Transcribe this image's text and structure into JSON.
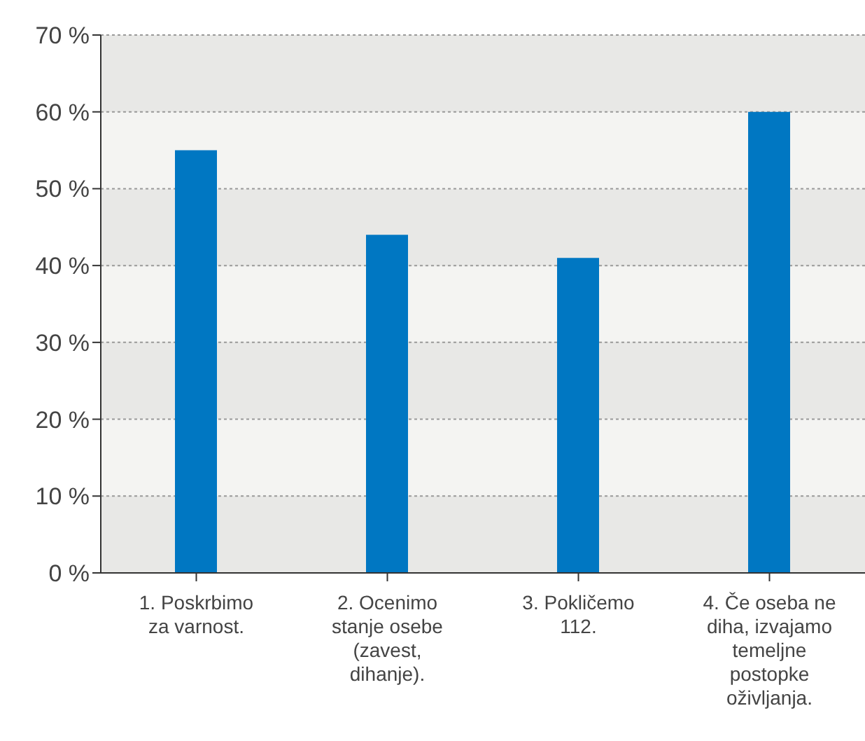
{
  "chart_data": {
    "type": "bar",
    "categories": [
      "1. Poskrbimo za varnost.",
      "2. Ocenimo stanje osebe (zavest, dihanje).",
      "3. Pokličemo 112.",
      "4. Če oseba ne diha, izvajamo temeljne postopke oživljanja."
    ],
    "values": [
      55,
      44,
      41,
      60
    ],
    "color": "#0077c2",
    "ylim": [
      0,
      70
    ],
    "yticks": [
      {
        "value": 0,
        "label": "0 %"
      },
      {
        "value": 10,
        "label": "10 %"
      },
      {
        "value": 20,
        "label": "20 %"
      },
      {
        "value": 30,
        "label": "30 %"
      },
      {
        "value": 40,
        "label": "40 %"
      },
      {
        "value": 50,
        "label": "50 %"
      },
      {
        "value": 60,
        "label": "60 %"
      },
      {
        "value": 70,
        "label": "70 %"
      }
    ],
    "grid": "y",
    "legend": false
  }
}
